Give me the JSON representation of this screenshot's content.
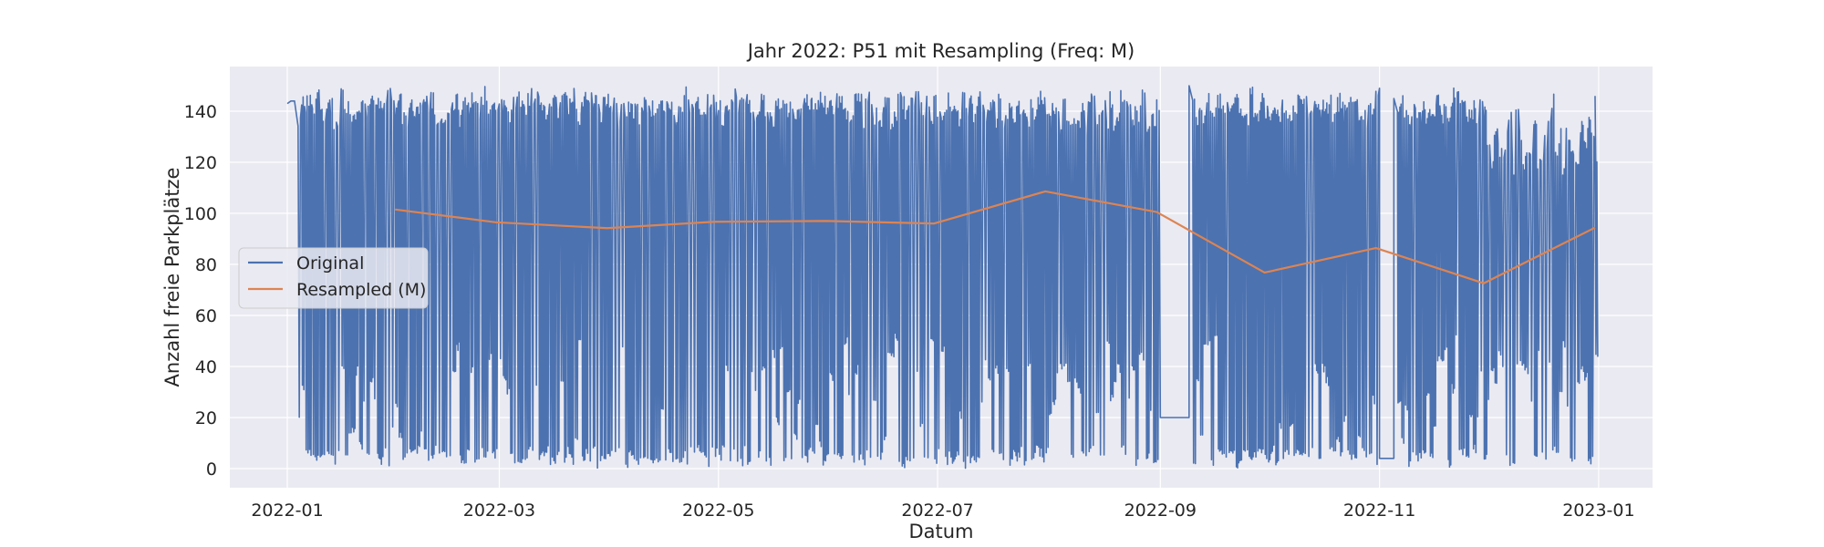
{
  "chart_data": {
    "type": "line",
    "title": "Jahr 2022: P51 mit Resampling (Freq: M)",
    "xlabel": "Datum",
    "ylabel": "Anzahl freie Parkplätze",
    "x_range": [
      "2021-12-16",
      "2023-01-16"
    ],
    "ylim": [
      -7.5,
      157.5
    ],
    "x_ticks": [
      "2022-01-01",
      "2022-03-01",
      "2022-05-01",
      "2022-07-01",
      "2022-09-01",
      "2022-11-01",
      "2023-01-01"
    ],
    "x_tick_labels": [
      "2022-01",
      "2022-03",
      "2022-05",
      "2022-07",
      "2022-09",
      "2022-11",
      "2023-01"
    ],
    "y_ticks": [
      0,
      20,
      40,
      60,
      80,
      100,
      120,
      140
    ],
    "y_tick_labels": [
      "0",
      "20",
      "40",
      "60",
      "80",
      "100",
      "120",
      "140"
    ],
    "grid": true,
    "legend_position": "center-left",
    "colors": {
      "Original": "#4c72b0",
      "Resampled (M)": "#dd8452",
      "background": "#eaeaf2",
      "grid": "#ffffff"
    },
    "series": [
      {
        "name": "Original",
        "pattern": "daily oscillation between free-space peaks and near-empty troughs, with a data plateau in September and a low plateau near 4 in early November",
        "sampled_points": [
          [
            "2022-01-01",
            143
          ],
          [
            "2022-01-02",
            144
          ],
          [
            "2022-01-04",
            36
          ],
          [
            "2022-01-06",
            0
          ],
          [
            "2022-01-10",
            148
          ],
          [
            "2022-01-20",
            2
          ],
          [
            "2022-02-01",
            150
          ],
          [
            "2022-02-15",
            0
          ],
          [
            "2022-03-01",
            150
          ],
          [
            "2022-03-15",
            0
          ],
          [
            "2022-04-01",
            150
          ],
          [
            "2022-04-15",
            0
          ],
          [
            "2022-05-01",
            150
          ],
          [
            "2022-05-15",
            0
          ],
          [
            "2022-06-01",
            150
          ],
          [
            "2022-06-15",
            0
          ],
          [
            "2022-07-01",
            149
          ],
          [
            "2022-07-10",
            18
          ],
          [
            "2022-07-28",
            52
          ],
          [
            "2022-08-01",
            148
          ],
          [
            "2022-08-08",
            30
          ],
          [
            "2022-08-20",
            0
          ],
          [
            "2022-09-01",
            149
          ],
          [
            "2022-09-01",
            20
          ],
          [
            "2022-09-09",
            20
          ],
          [
            "2022-09-09",
            150
          ],
          [
            "2022-09-15",
            0
          ],
          [
            "2022-10-01",
            150
          ],
          [
            "2022-10-15",
            0
          ],
          [
            "2022-11-01",
            149
          ],
          [
            "2022-11-01",
            4
          ],
          [
            "2022-11-05",
            4
          ],
          [
            "2022-11-06",
            145
          ],
          [
            "2022-11-15",
            0
          ],
          [
            "2022-12-01",
            147
          ],
          [
            "2022-12-15",
            0
          ],
          [
            "2022-12-28",
            25
          ],
          [
            "2022-12-31",
            146
          ]
        ]
      },
      {
        "name": "Resampled (M)",
        "x": [
          "2022-01-31",
          "2022-02-28",
          "2022-03-31",
          "2022-04-30",
          "2022-05-31",
          "2022-06-30",
          "2022-07-31",
          "2022-08-31",
          "2022-09-30",
          "2022-10-31",
          "2022-11-30",
          "2022-12-31"
        ],
        "values": [
          101.5,
          96.5,
          94.2,
          96.7,
          97.0,
          96.0,
          108.6,
          100.5,
          76.8,
          86.4,
          72.6,
          94.4
        ]
      }
    ]
  }
}
